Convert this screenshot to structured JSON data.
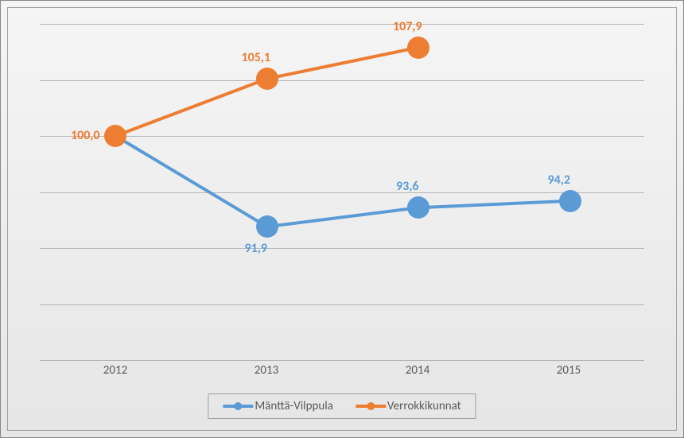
{
  "chart": {
    "type": "line",
    "background_gradient": [
      "#f5f5f5",
      "#e6e6e6"
    ],
    "border_color": "#888888",
    "inner_border_color": "#a0a0a0",
    "grid_color": "#b5b5b5",
    "label_color": "#5a5a5a",
    "y_min": 80,
    "y_max": 110,
    "y_gridline_step": 5,
    "categories": [
      "2012",
      "2013",
      "2014",
      "2015"
    ],
    "decimal_separator": ",",
    "data_label_fontsize": 16,
    "axis_label_fontsize": 15,
    "series": [
      {
        "name": "Mänttä-Vilppula",
        "color": "#5b9bd5",
        "line_width": 4,
        "marker_radius": 14,
        "reference_index": 0,
        "data_label_position": [
          "below",
          "below",
          "above",
          "above"
        ],
        "values": [
          100.0,
          91.9,
          93.6,
          94.2
        ]
      },
      {
        "name": "Verrokkikunnat",
        "color": "#ed7d31",
        "line_width": 4,
        "marker_radius": 14,
        "reference_index": 0,
        "data_label_position": [
          "above",
          "above",
          "above",
          null
        ],
        "values": [
          100.0,
          105.1,
          107.9,
          null
        ]
      }
    ],
    "legend": {
      "position": "bottom",
      "border_color": "#a0a0a0"
    }
  }
}
